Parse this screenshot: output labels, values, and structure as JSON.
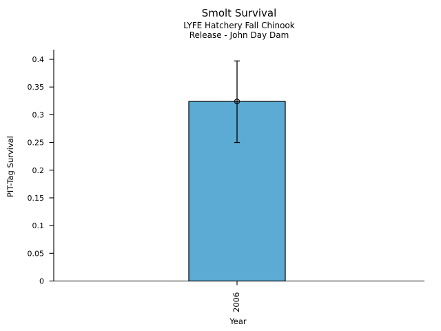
{
  "chart_data": {
    "type": "bar",
    "title": "Smolt Survival",
    "subtitle_lines": [
      "LYFE Hatchery Fall Chinook",
      "Release - John Day Dam"
    ],
    "xlabel": "Year",
    "ylabel": "PIT-Tag Survival",
    "categories": [
      "2006"
    ],
    "values": [
      0.324
    ],
    "error_low": [
      0.25
    ],
    "error_high": [
      0.397
    ],
    "yticks": [
      0,
      0.05,
      0.1,
      0.15,
      0.2,
      0.25,
      0.3,
      0.35,
      0.4
    ],
    "ytick_labels": [
      "0",
      "0.05",
      "0.1",
      "0.15",
      "0.2",
      "0.25",
      "0.3",
      "0.35",
      "0.4"
    ],
    "ylim": [
      0,
      0.4175
    ],
    "grid": false,
    "legend_position": "none",
    "bar_color": "#5BABD5",
    "edge_color": "#000000",
    "error_bar_color": "#000000",
    "marker": "open-circle"
  }
}
